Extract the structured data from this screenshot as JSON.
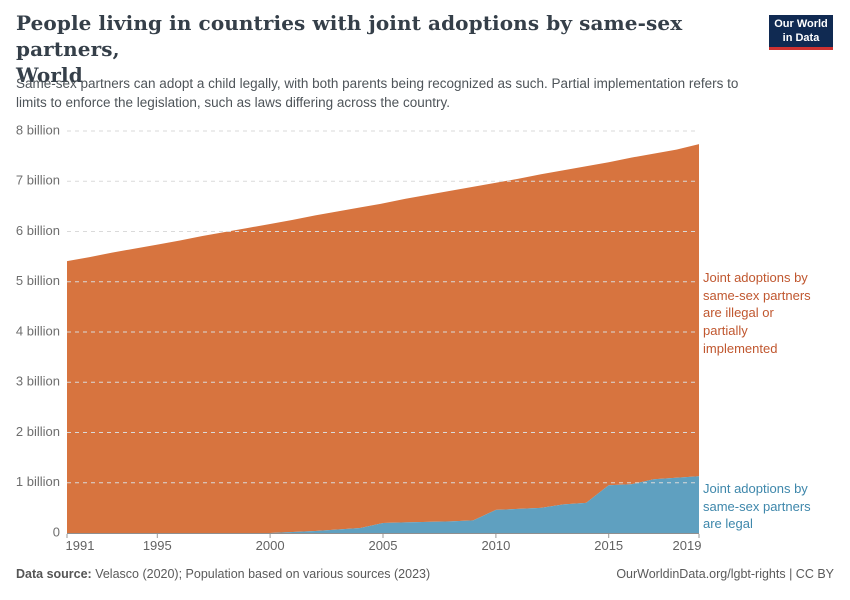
{
  "header": {
    "title": "People living in countries with joint adoptions by same-sex partners,\nWorld",
    "subtitle": "Same-sex partners can adopt a child legally, with both parents being recognized as such. Partial implementation refers to\nlimits to enforce the legislation, such as laws differing across the country.",
    "logo_text": "Our World\nin Data",
    "logo_bg_color": "#102a52",
    "logo_stripe_color": "#cf3231"
  },
  "footer": {
    "source_label": "Data source:",
    "source_text": " Velasco (2020); Population based on various sources (2023)",
    "link_text": "OurWorldinData.org/lgbt-rights | CC BY"
  },
  "chart_data": {
    "type": "area",
    "stacked": true,
    "title": "People living in countries with joint adoptions by same-sex partners, World",
    "xlabel": "",
    "ylabel": "",
    "unit": "billion people",
    "xlim": [
      1991,
      2019
    ],
    "ylim": [
      0,
      8
    ],
    "grid": "horizontal-dashed",
    "legend_position": "right-of-plot",
    "x": [
      1991,
      1992,
      1993,
      1994,
      1995,
      1996,
      1997,
      1998,
      1999,
      2000,
      2001,
      2002,
      2003,
      2004,
      2005,
      2006,
      2007,
      2008,
      2009,
      2010,
      2011,
      2012,
      2013,
      2014,
      2015,
      2016,
      2017,
      2018,
      2019
    ],
    "xticks": [
      1991,
      1995,
      2000,
      2005,
      2010,
      2015,
      2019
    ],
    "yticks": [
      {
        "value": 0,
        "label": "0"
      },
      {
        "value": 1,
        "label": "1 billion"
      },
      {
        "value": 2,
        "label": "2 billion"
      },
      {
        "value": 3,
        "label": "3 billion"
      },
      {
        "value": 4,
        "label": "4 billion"
      },
      {
        "value": 5,
        "label": "5 billion"
      },
      {
        "value": 6,
        "label": "6 billion"
      },
      {
        "value": 7,
        "label": "7 billion"
      },
      {
        "value": 8,
        "label": "8 billion"
      }
    ],
    "series": [
      {
        "name": "Joint adoptions by same-sex partners are legal",
        "label": "Joint adoptions by\nsame-sex partners\nare legal",
        "color": "#5fa0c0",
        "label_color": "#3e87ab",
        "values": [
          0,
          0,
          0,
          0,
          0,
          0,
          0,
          0,
          0,
          0,
          0.02,
          0.04,
          0.07,
          0.1,
          0.2,
          0.21,
          0.22,
          0.23,
          0.25,
          0.46,
          0.48,
          0.5,
          0.57,
          0.6,
          0.95,
          0.97,
          1.07,
          1.1,
          1.13
        ]
      },
      {
        "name": "Joint adoptions by same-sex partners are illegal or partially implemented",
        "label": "Joint adoptions by\nsame-sex partners\nare illegal or\npartially\nimplemented",
        "color": "#d7743f",
        "label_color": "#c0572f",
        "values": [
          5.41,
          5.49,
          5.58,
          5.66,
          5.74,
          5.82,
          5.91,
          5.99,
          6.07,
          6.15,
          6.21,
          6.28,
          6.33,
          6.38,
          6.36,
          6.44,
          6.51,
          6.58,
          6.64,
          6.51,
          6.57,
          6.64,
          6.65,
          6.7,
          6.43,
          6.5,
          6.48,
          6.53,
          6.61
        ]
      }
    ]
  }
}
